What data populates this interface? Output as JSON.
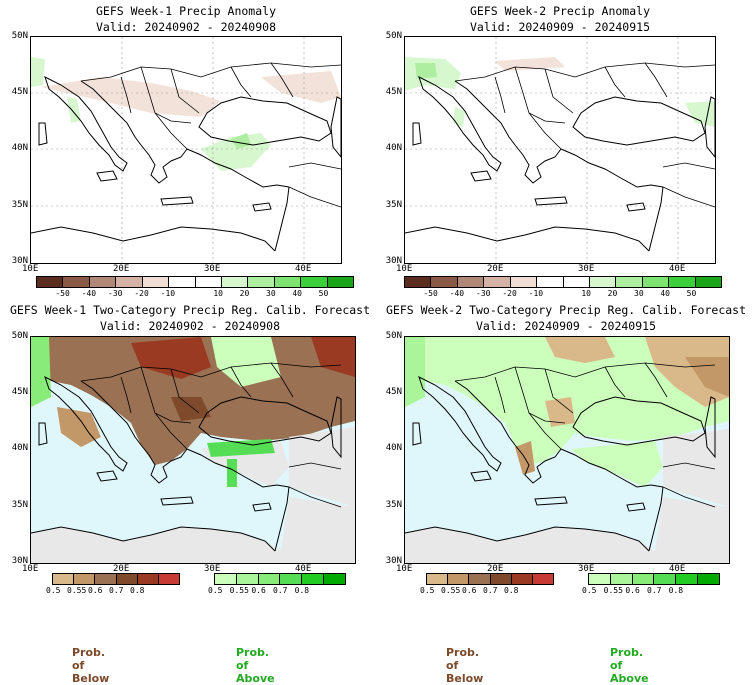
{
  "panels": [
    {
      "title": "GEFS Week-1 Precip Anomaly",
      "valid": "Valid: 20240902 - 20240908"
    },
    {
      "title": "GEFS Week-2 Precip Anomaly",
      "valid": "Valid: 20240909 - 20240915"
    },
    {
      "title": "GEFS Week-1 Two-Category Precip Reg. Calib. Forecast",
      "valid": "Valid: 20240902 - 20240908"
    },
    {
      "title": "GEFS Week-2 Two-Category Precip Reg. Calib. Forecast",
      "valid": "Valid: 20240909 - 20240915"
    }
  ],
  "axes": {
    "lat_labels": [
      "50N",
      "45N",
      "40N",
      "35N",
      "30N"
    ],
    "lon_labels": [
      "10E",
      "20E",
      "30E",
      "40E"
    ]
  },
  "anomaly_colorbar": {
    "ticks": [
      "-50",
      "-40",
      "-30",
      "-20",
      "-10",
      "10",
      "20",
      "30",
      "40",
      "50"
    ],
    "colors": [
      "#5a2d1e",
      "#8a5a46",
      "#b08878",
      "#d4b2a5",
      "#f0ddd3",
      "#ffffff",
      "#ffffff",
      "#d7f7cf",
      "#aeeea0",
      "#7ee370",
      "#3ccf3c",
      "#1aa51a"
    ]
  },
  "prob_colorbar": {
    "ticks": [
      "0.5",
      "0.55",
      "0.6",
      "0.7",
      "0.8"
    ],
    "below_colors": [
      "#d9b88a",
      "#c39868",
      "#9a7152",
      "#7f4a2b",
      "#9a3a22",
      "#c83b34"
    ],
    "above_colors": [
      "#ccffbb",
      "#aaf59a",
      "#88ec78",
      "#55dd55",
      "#22cc22",
      "#00aa00"
    ]
  },
  "prob_labels": {
    "below": "Prob. of Below",
    "above": "Prob. of Above",
    "below_color": "#7a4a2a",
    "above_color": "#22aa22"
  },
  "colors": {
    "water": "#dff6fb",
    "land_gray": "#e8e8e8",
    "coast": "#000000"
  }
}
